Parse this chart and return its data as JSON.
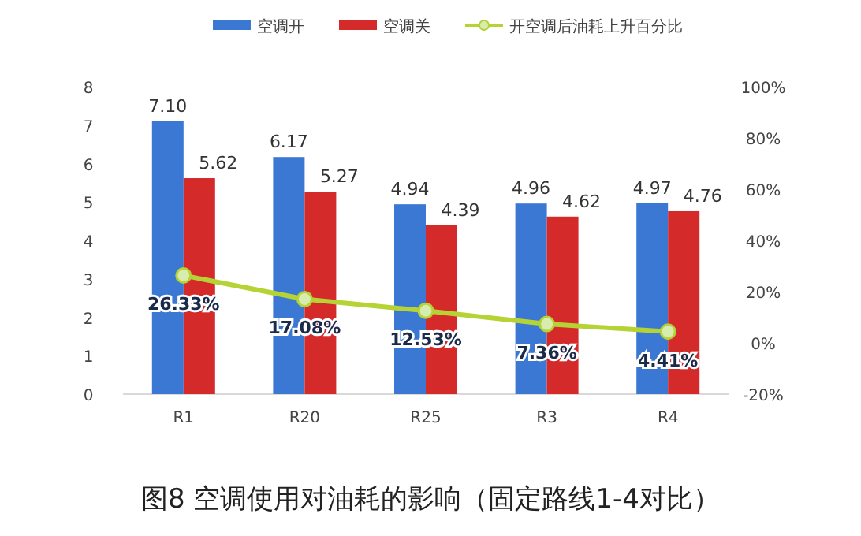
{
  "chart_data": {
    "type": "bar",
    "title": "图8 空调使用对油耗的影响（固定路线1-4对比）",
    "categories": [
      "R1",
      "R20",
      "R25",
      "R3",
      "R4"
    ],
    "series": [
      {
        "name": "空调开",
        "color": "#3a78d4",
        "values": [
          7.1,
          6.17,
          4.94,
          4.96,
          4.97
        ],
        "value_labels": [
          "7.10",
          "6.17",
          "4.94",
          "4.96",
          "4.97"
        ]
      },
      {
        "name": "空调关",
        "color": "#d42a2a",
        "values": [
          5.62,
          5.27,
          4.39,
          4.62,
          4.76
        ],
        "value_labels": [
          "5.62",
          "5.27",
          "4.39",
          "4.62",
          "4.76"
        ]
      },
      {
        "name": "开空调后油耗上升百分比",
        "type": "line",
        "axis": "y2",
        "color": "#b5d334",
        "values": [
          26.33,
          17.08,
          12.53,
          7.36,
          4.41
        ],
        "value_labels": [
          "26.33%",
          "17.08%",
          "12.53%",
          "7.36%",
          "4.41%"
        ]
      }
    ],
    "ylim": [
      0,
      8
    ],
    "yticks": [
      0,
      1,
      2,
      3,
      4,
      5,
      6,
      7,
      8
    ],
    "y2lim": [
      -20,
      100
    ],
    "y2ticks": [
      {
        "value": -20,
        "label": "-20%"
      },
      {
        "value": 0,
        "label": "0%"
      },
      {
        "value": 20,
        "label": "20%"
      },
      {
        "value": 40,
        "label": "40%"
      },
      {
        "value": 60,
        "label": "60%"
      },
      {
        "value": 80,
        "label": "80%"
      },
      {
        "value": 100,
        "label": "100%"
      }
    ],
    "marker": "circle",
    "legend": "top",
    "grid": false
  }
}
